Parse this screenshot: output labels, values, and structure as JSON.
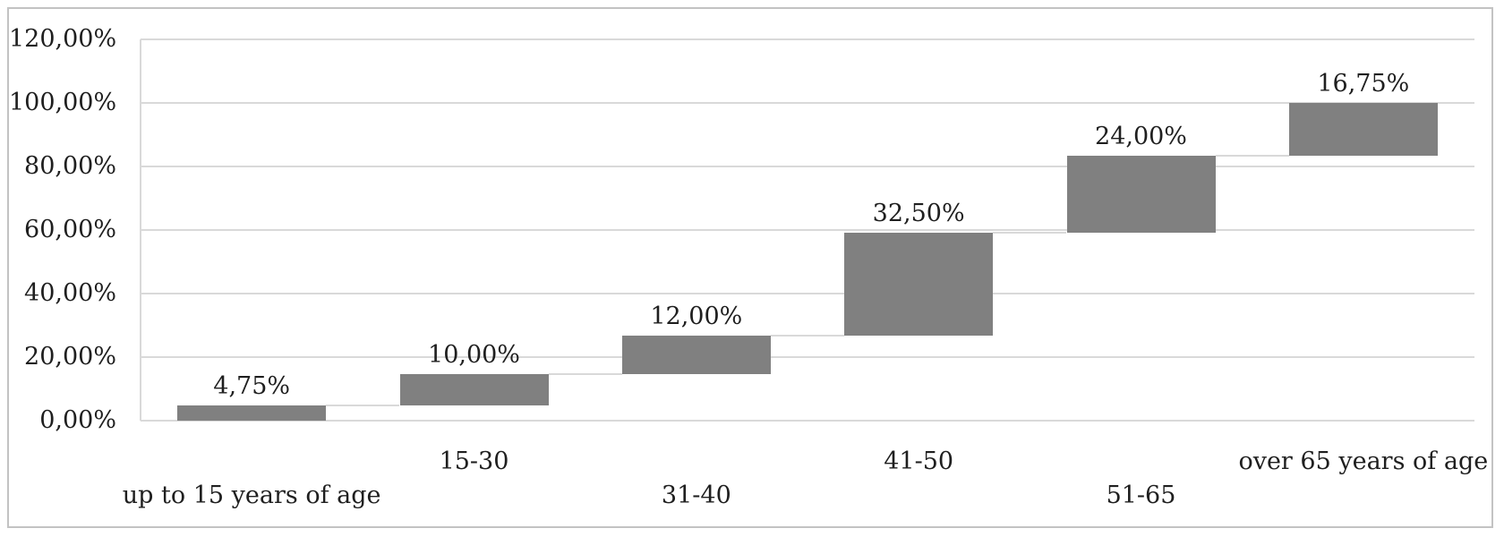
{
  "chart_data": {
    "type": "bar",
    "subtype": "waterfall",
    "title": "",
    "xlabel": "",
    "ylabel": "",
    "categories": [
      "up to 15 years of age",
      "15-30",
      "31-40",
      "41-50",
      "51-65",
      "over 65 years of age"
    ],
    "values": [
      4.75,
      10.0,
      12.0,
      32.5,
      24.0,
      16.75
    ],
    "value_labels": [
      "4,75%",
      "10,00%",
      "12,00%",
      "32,50%",
      "24,00%",
      "16,75%"
    ],
    "cumulative_start": [
      0,
      4.75,
      14.75,
      26.75,
      59.25,
      83.25
    ],
    "cumulative_end": [
      4.75,
      14.75,
      26.75,
      59.25,
      83.25,
      100.0
    ],
    "ylim": [
      0,
      120
    ],
    "ytick_step": 20,
    "ytick_labels": [
      "0,00%",
      "20,00%",
      "40,00%",
      "60,00%",
      "80,00%",
      "100,00%",
      "120,00%"
    ],
    "grid": "horizontal",
    "legend_position": "none",
    "colors": {
      "bar_fill": "#808080",
      "gridline": "#d9d9d9",
      "connector": "#d9d9d9",
      "axis_line": "#d9d9d9",
      "frame_border": "#c3c3c3",
      "text": "#1f1f1f",
      "background": "#ffffff"
    }
  }
}
